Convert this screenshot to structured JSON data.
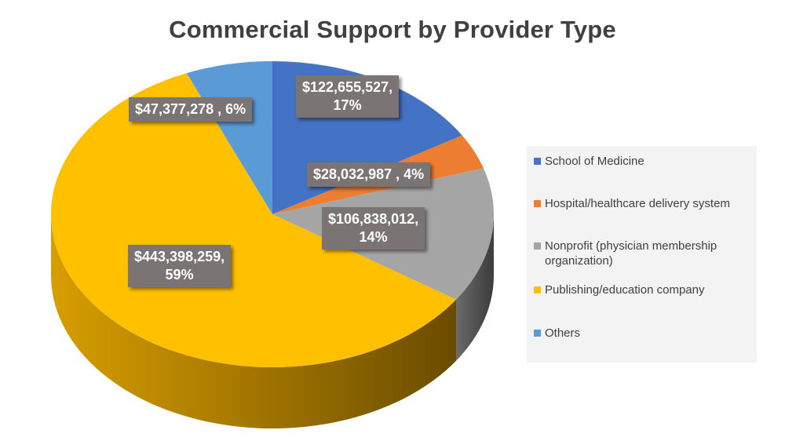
{
  "chart_data": {
    "type": "pie",
    "title": "Commercial Support by Provider Type",
    "slices": [
      {
        "name": "School of Medicine",
        "value": 122655527,
        "percent": 17,
        "label_lines": [
          "$122,655,527,",
          "17%"
        ],
        "color": "#4472c4"
      },
      {
        "name": "Hospital/healthcare delivery system",
        "value": 28032987,
        "percent": 4,
        "label_lines": [
          "$28,032,987 , 4%"
        ],
        "color": "#ed7d31"
      },
      {
        "name": "Nonprofit (physician membership organization)",
        "value": 106838012,
        "percent": 14,
        "label_lines": [
          "$106,838,012,",
          "14%"
        ],
        "color": "#a5a5a5"
      },
      {
        "name": "Publishing/education company",
        "value": 443398259,
        "percent": 59,
        "label_lines": [
          "$443,398,259,",
          "59%"
        ],
        "color": "#ffc000"
      },
      {
        "name": "Others",
        "value": 47377278,
        "percent": 6,
        "label_lines": [
          "$47,377,278 , 6%"
        ],
        "color": "#5b9bd5"
      }
    ],
    "legend": {
      "position": "right",
      "items": [
        {
          "lines": [
            "School of Medicine"
          ],
          "color": "#4472c4"
        },
        {
          "lines": [
            "Hospital/healthcare delivery system"
          ],
          "color": "#ed7d31"
        },
        {
          "lines": [
            "Nonprofit (physician membership",
            "organization)"
          ],
          "color": "#a5a5a5"
        },
        {
          "lines": [
            "Publishing/education company"
          ],
          "color": "#ffc000"
        },
        {
          "lines": [
            "Others"
          ],
          "color": "#5b9bd5"
        }
      ]
    },
    "style": "3d"
  }
}
